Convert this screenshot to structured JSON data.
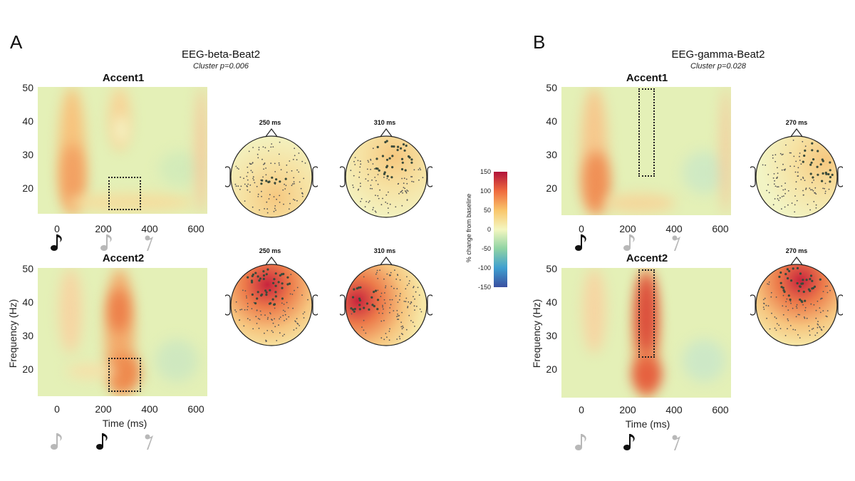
{
  "panels": {
    "A": {
      "letter": "A",
      "title": "EEG-beta-Beat2",
      "subtitle": "Cluster p=0.006",
      "accent1": {
        "title": "Accent1",
        "topo_times": [
          "250 ms",
          "310 ms"
        ]
      },
      "accent2": {
        "title": "Accent2",
        "topo_times": [
          "250 ms",
          "310 ms"
        ]
      }
    },
    "B": {
      "letter": "B",
      "title": "EEG-gamma-Beat2",
      "subtitle": "Cluster p=0.028",
      "accent1": {
        "title": "Accent1",
        "topo_times": [
          "270 ms"
        ]
      },
      "accent2": {
        "title": "Accent2",
        "topo_times": [
          "270 ms"
        ]
      }
    }
  },
  "axes": {
    "y_ticks": [
      "50",
      "40",
      "30",
      "20"
    ],
    "x_ticks": [
      "0",
      "200",
      "400",
      "600"
    ],
    "ylabel": "Frequency (Hz)",
    "xlabel": "Time (ms)"
  },
  "colorbar": {
    "label": "% change from baseline",
    "ticks": [
      "150",
      "100",
      "50",
      "0",
      "-50",
      "-100",
      "-150"
    ],
    "range": [
      -150,
      150
    ],
    "colors": [
      "#3a4fa0",
      "#3f9fd0",
      "#8fd3a4",
      "#f4f7c0",
      "#f9c56a",
      "#ef6a3e",
      "#b1123a"
    ]
  },
  "chart_data": [
    {
      "type": "heatmap",
      "panel": "A",
      "condition": "Accent1",
      "title": "Accent1",
      "xlabel": "",
      "ylabel": "",
      "xlim": [
        -80,
        650
      ],
      "ylim": [
        12,
        50
      ],
      "x_ticks": [
        0,
        200,
        400,
        600
      ],
      "y_ticks": [
        20,
        30,
        40,
        50
      ],
      "cluster_window": {
        "time_ms": [
          220,
          360
        ],
        "freq_hz": [
          14,
          24
        ]
      },
      "topoplot_times_ms": [
        250,
        310
      ]
    },
    {
      "type": "heatmap",
      "panel": "A",
      "condition": "Accent2",
      "title": "Accent2",
      "xlabel": "Time (ms)",
      "ylabel": "Frequency (Hz)",
      "xlim": [
        -80,
        650
      ],
      "ylim": [
        12,
        50
      ],
      "x_ticks": [
        0,
        200,
        400,
        600
      ],
      "y_ticks": [
        20,
        30,
        40,
        50
      ],
      "cluster_window": {
        "time_ms": [
          220,
          360
        ],
        "freq_hz": [
          14,
          24
        ]
      },
      "topoplot_times_ms": [
        250,
        310
      ]
    },
    {
      "type": "heatmap",
      "panel": "B",
      "condition": "Accent1",
      "title": "Accent1",
      "xlabel": "",
      "ylabel": "",
      "xlim": [
        -80,
        650
      ],
      "ylim": [
        12,
        50
      ],
      "x_ticks": [
        0,
        200,
        400,
        600
      ],
      "y_ticks": [
        20,
        30,
        40,
        50
      ],
      "cluster_window": {
        "time_ms": [
          240,
          310
        ],
        "freq_hz": [
          24,
          50
        ]
      },
      "topoplot_times_ms": [
        270
      ]
    },
    {
      "type": "heatmap",
      "panel": "B",
      "condition": "Accent2",
      "title": "Accent2",
      "xlabel": "Time (ms)",
      "ylabel": "Frequency (Hz)",
      "xlim": [
        -80,
        650
      ],
      "ylim": [
        12,
        50
      ],
      "x_ticks": [
        0,
        200,
        400,
        600
      ],
      "y_ticks": [
        20,
        30,
        40,
        50
      ],
      "cluster_window": {
        "time_ms": [
          240,
          310
        ],
        "freq_hz": [
          24,
          50
        ]
      },
      "topoplot_times_ms": [
        270
      ]
    }
  ]
}
